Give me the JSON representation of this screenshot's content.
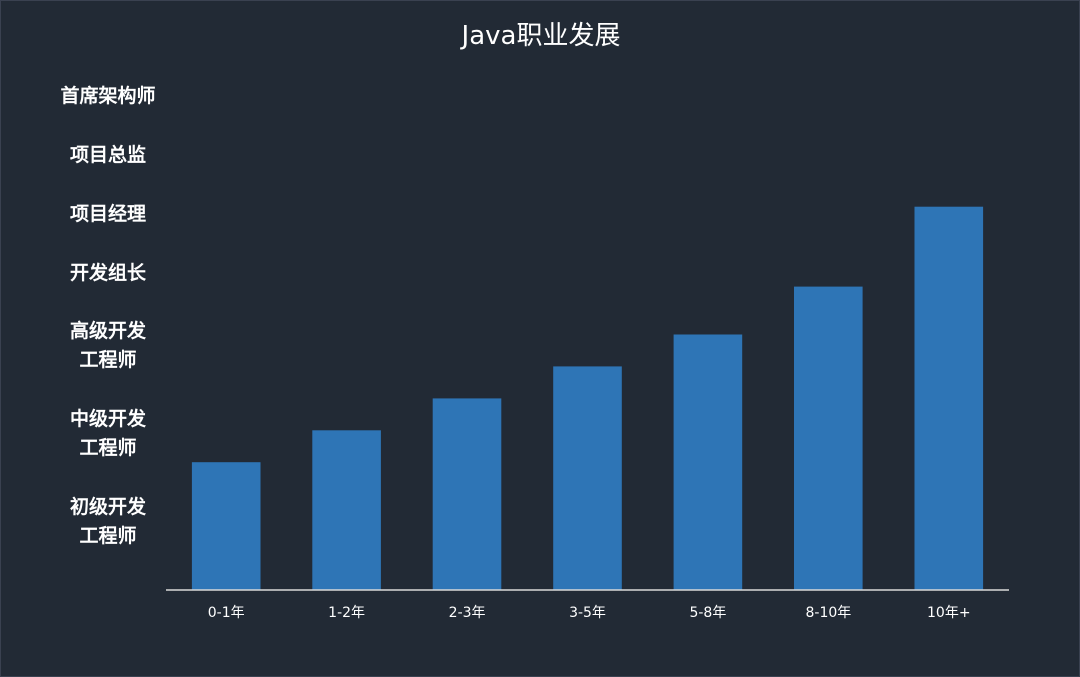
{
  "chart_data": {
    "type": "bar",
    "title": "Java职业发展",
    "xlabel": "",
    "ylabel": "",
    "categories": [
      "0-1年",
      "1-2年",
      "2-3年",
      "3-5年",
      "5-8年",
      "8-10年",
      "10年+"
    ],
    "values": [
      1.6,
      2.0,
      2.4,
      2.8,
      3.2,
      3.8,
      4.8
    ],
    "ylim": [
      0,
      6.5
    ],
    "y_category_labels": [
      "首席架构师",
      "项目总监",
      "项目经理",
      "开发组长",
      "高级开发\n工程师",
      "中级开发\n工程师",
      "初级开发\n工程师"
    ],
    "grid": false,
    "legend": "none",
    "colors": {
      "bar": "#2e75b6",
      "background": "#222a35",
      "text": "#ffffff",
      "axis": "#d9d9d9"
    }
  }
}
